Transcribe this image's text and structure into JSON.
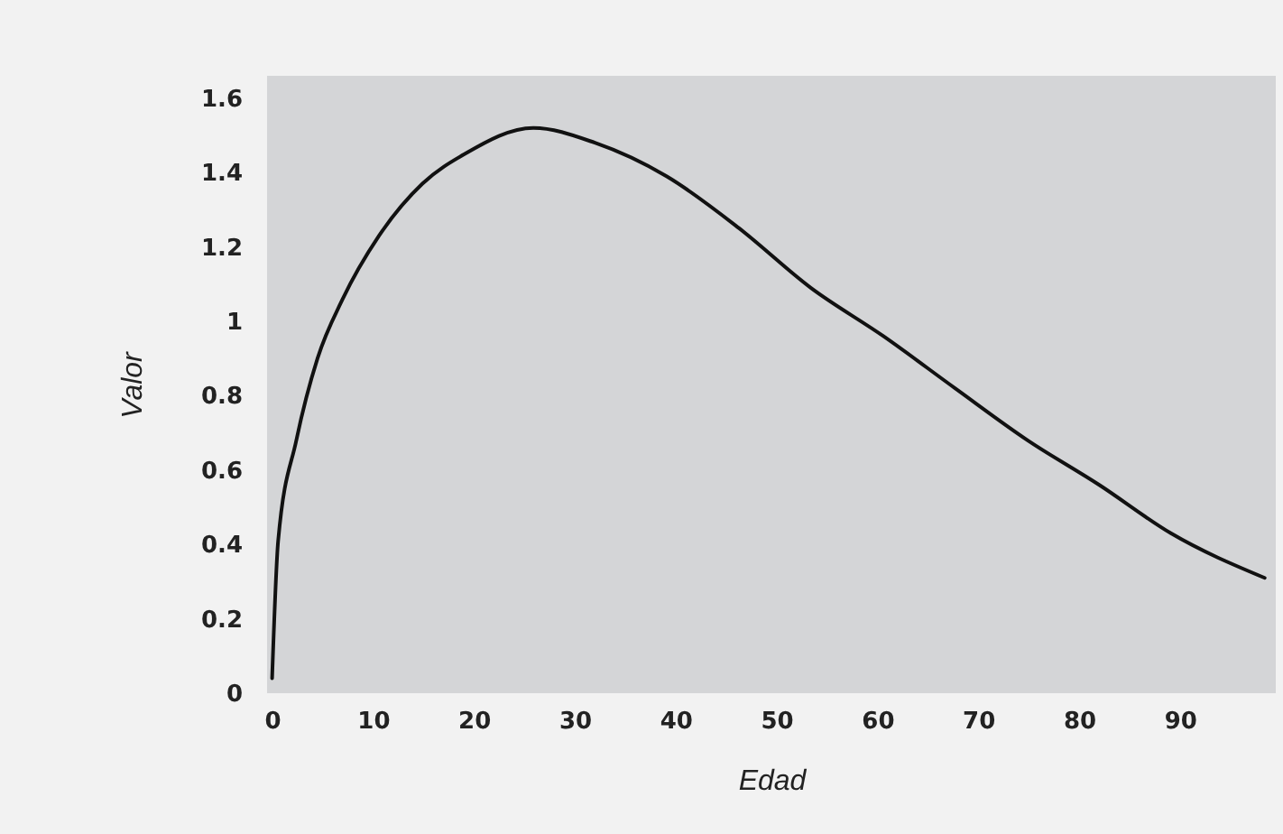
{
  "chart_data": {
    "type": "line",
    "xlabel": "Edad",
    "ylabel": "Valor",
    "x": [
      0,
      0.6,
      2.4,
      4.5,
      7,
      10.6,
      14.9,
      19.1,
      25.9,
      32,
      39.1,
      46.3,
      53.4,
      60.6,
      67.7,
      74.9,
      82,
      89.1,
      98.4
    ],
    "series": [
      {
        "color": "#111111",
        "values": [
          0.04,
          0.41,
          0.68,
          0.9,
          1.06,
          1.23,
          1.37,
          1.45,
          1.52,
          1.48,
          1.39,
          1.25,
          1.09,
          0.96,
          0.82,
          0.68,
          0.56,
          0.43,
          0.31
        ]
      }
    ],
    "xlim": [
      -0.5,
      99.5
    ],
    "xticks": [
      0,
      10,
      20,
      30,
      40,
      50,
      60,
      70,
      80,
      90
    ],
    "ylim": [
      0,
      1.66
    ],
    "yticks": [
      0,
      0.2,
      0.4,
      0.6,
      0.8,
      1,
      1.2,
      1.4,
      1.6
    ],
    "marker": "none",
    "line_style": "solid"
  }
}
